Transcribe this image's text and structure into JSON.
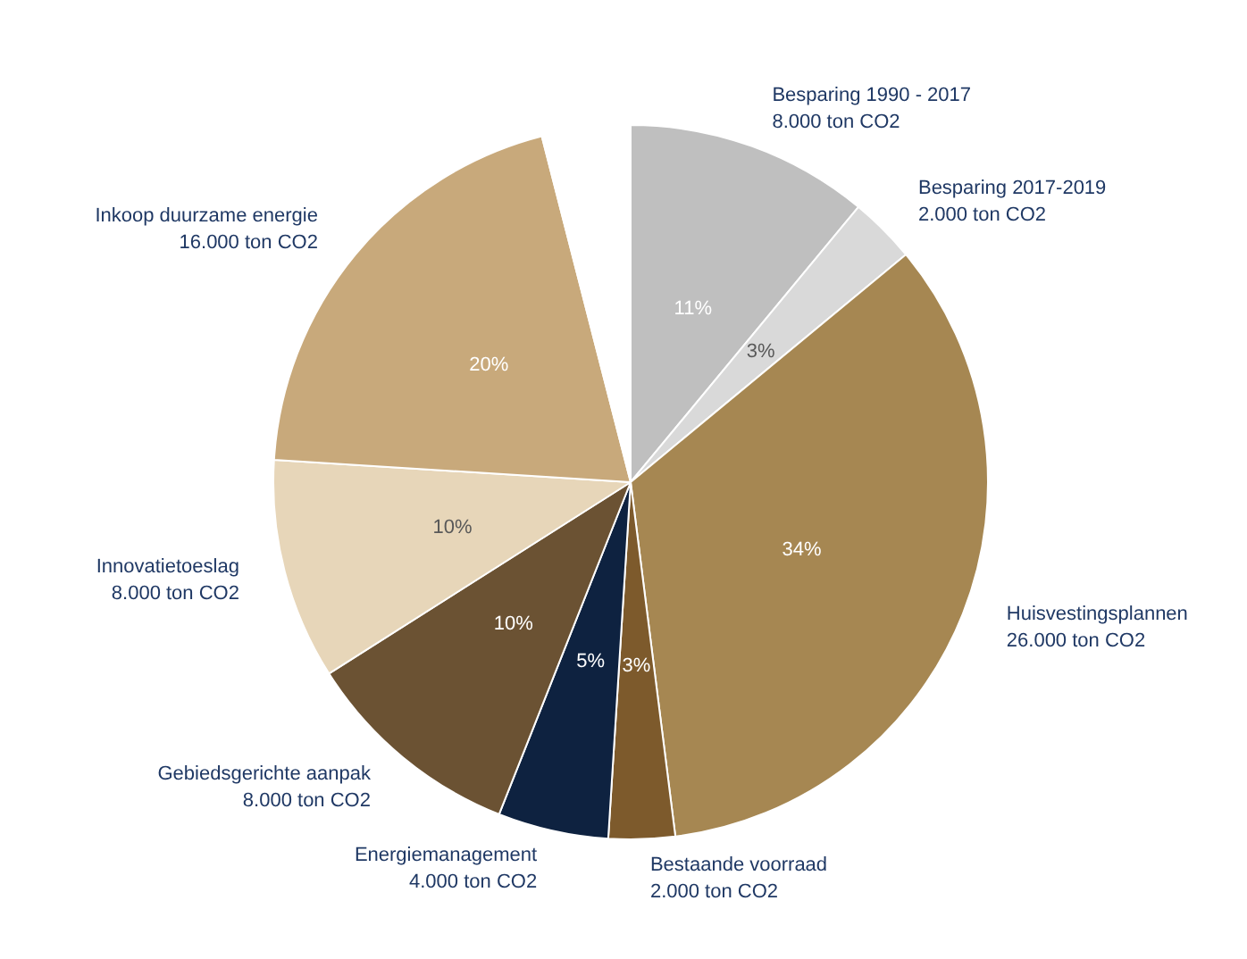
{
  "chart_data": {
    "type": "pie",
    "categories": [
      "Besparing 1990 - 2017\n8.000 ton CO2",
      "Besparing 2017-2019\n2.000 ton CO2",
      "Huisvestingsplannen\n26.000 ton CO2",
      "Bestaande voorraad\n2.000 ton CO2",
      "Energiemanagement\n4.000 ton CO2",
      "Gebiedsgerichte aanpak\n8.000 ton CO2",
      "Innovatietoeslag\n8.000 ton CO2",
      "Inkoop duurzame energie\n16.000 ton CO2",
      null
    ],
    "values": [
      11,
      3,
      34,
      3,
      5,
      10,
      10,
      20,
      4
    ],
    "value_labels": [
      "11%",
      "3%",
      "34%",
      "3%",
      "5%",
      "10%",
      "10%",
      "20%",
      null
    ],
    "colors": [
      "#bfbfbf",
      "#d9d9d9",
      "#a68752",
      "#7d5a2c",
      "#0e2240",
      "#6b5233",
      "#e7d6b9",
      "#c8a97b",
      "#ffffff"
    ]
  }
}
